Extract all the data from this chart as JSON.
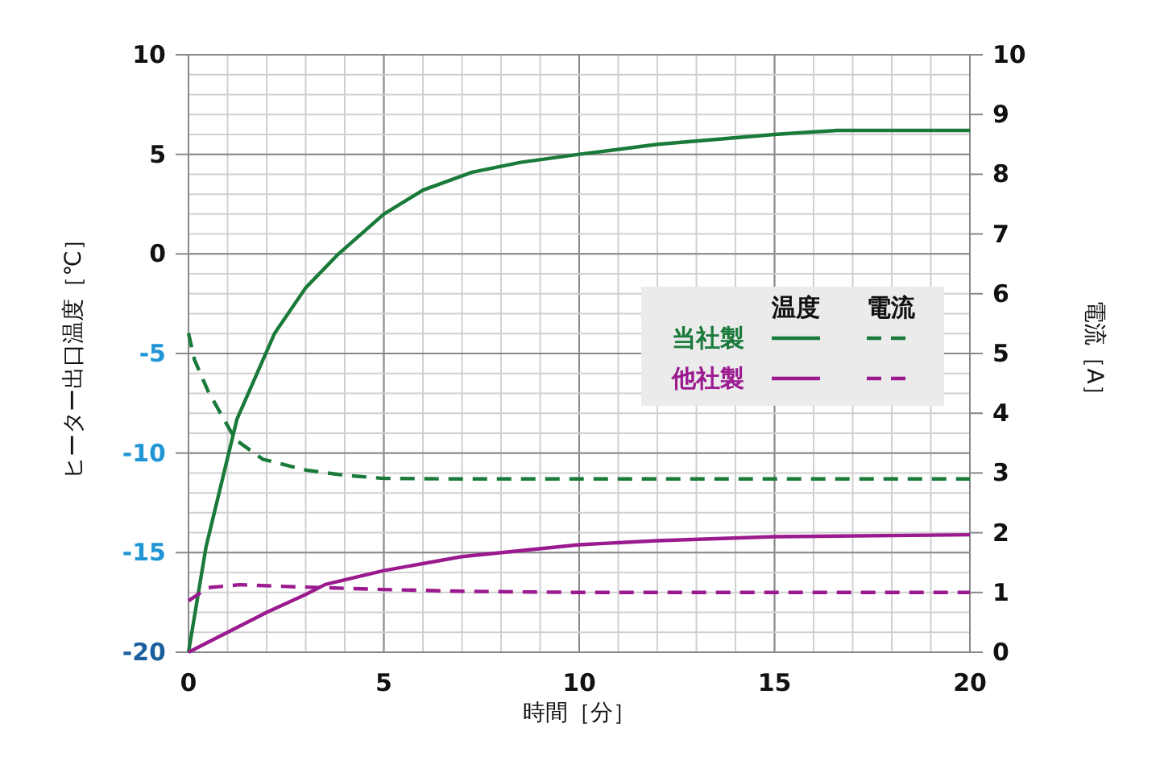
{
  "chart_data": {
    "type": "line",
    "xlabel": "時間［分］",
    "ylabel": "ヒーター出口温度［℃］",
    "y2label": "電流［A］",
    "xlim": [
      0,
      20
    ],
    "xticks": [
      0,
      5,
      10,
      15,
      20
    ],
    "ylim": [
      -20,
      10
    ],
    "yticks": [
      -20,
      -15,
      -10,
      -5,
      0,
      5,
      10
    ],
    "y2lim": [
      0,
      10
    ],
    "y2ticks": [
      0,
      1,
      2,
      3,
      4,
      5,
      6,
      7,
      8,
      9,
      10
    ],
    "grid": true,
    "annotations": [
      "温度",
      "電流",
      "当社製",
      "他社製"
    ],
    "series": [
      {
        "color": "#1a7a3a",
        "line_style": "solid",
        "x": [
          0,
          0.45,
          1.24,
          2.2,
          3.0,
          3.84,
          5,
          6,
          7.26,
          8.5,
          10,
          12,
          15,
          16.6,
          18,
          20
        ],
        "values": [
          -20,
          -14.7,
          -8.3,
          -4.0,
          -1.7,
          0.0,
          2.0,
          3.2,
          4.1,
          4.6,
          5.0,
          5.5,
          6.0,
          6.2,
          6.2,
          6.2
        ]
      },
      {
        "color": "#1a7a3a",
        "line_style": "dashed",
        "axis": "y2",
        "x": [
          0,
          0.15,
          0.5,
          1.2,
          1.9,
          3.0,
          4.0,
          5.0,
          7,
          10,
          15,
          20
        ],
        "values": [
          5.34,
          4.9,
          4.37,
          3.56,
          3.23,
          3.05,
          2.96,
          2.91,
          2.9,
          2.9,
          2.9,
          2.9
        ]
      },
      {
        "color": "#9b1a8f",
        "line_style": "solid",
        "x": [
          0,
          1,
          2,
          3,
          3.5,
          5,
          7,
          10,
          12,
          15,
          20
        ],
        "values": [
          -20,
          -19.0,
          -18.0,
          -17.1,
          -16.6,
          -15.9,
          -15.2,
          -14.6,
          -14.4,
          -14.2,
          -14.1
        ]
      },
      {
        "color": "#9b1a8f",
        "line_style": "dashed",
        "axis": "y2",
        "x": [
          0,
          0.5,
          1.3,
          2.5,
          5,
          7,
          10,
          15,
          20
        ],
        "values": [
          0.86,
          1.08,
          1.13,
          1.1,
          1.05,
          1.02,
          1.0,
          1.0,
          1.0
        ]
      }
    ]
  }
}
